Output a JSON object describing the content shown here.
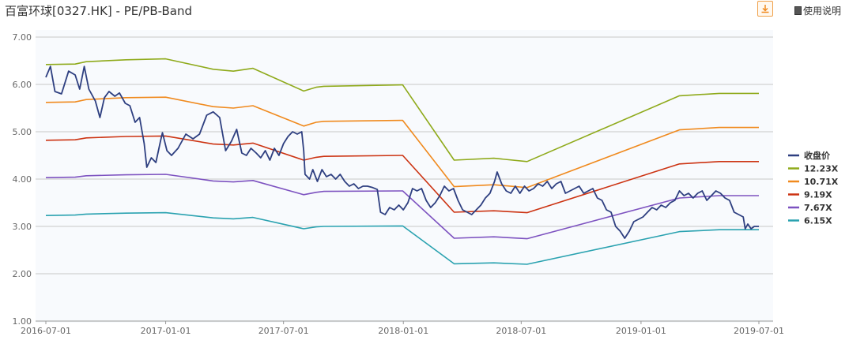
{
  "header": {
    "title": "百富环球[0327.HK] - PE/PB-Band",
    "help_label": "使用说明"
  },
  "chart_data": {
    "type": "line",
    "y_ticks": [
      "7.00",
      "6.00",
      "5.00",
      "4.00",
      "3.00",
      "2.00",
      "1.00"
    ],
    "ylim": [
      1,
      7
    ],
    "x_ticks": [
      {
        "label": "2016-07-01",
        "date": "2016-07-01"
      },
      {
        "label": "2017-01-01",
        "date": "2017-01-01"
      },
      {
        "label": "2017-07-01",
        "date": "2017-07-01"
      },
      {
        "label": "2018-01-01",
        "date": "2018-01-01"
      },
      {
        "label": "2018-07-01",
        "date": "2018-07-01"
      },
      {
        "label": "2019-01-01",
        "date": "2019-01-01"
      },
      {
        "label": "2019-07-01",
        "date": "2019-07-01"
      }
    ],
    "xlim": [
      "2016-07-01",
      "2019-07-01"
    ],
    "grid": true,
    "legend_position": "right",
    "series": [
      {
        "name": "收盘价",
        "color": "#2e3f80",
        "points": [
          [
            "2016-07-01",
            6.15
          ],
          [
            "2016-07-08",
            6.38
          ],
          [
            "2016-07-15",
            5.85
          ],
          [
            "2016-07-25",
            5.8
          ],
          [
            "2016-08-05",
            6.28
          ],
          [
            "2016-08-15",
            6.2
          ],
          [
            "2016-08-22",
            5.9
          ],
          [
            "2016-08-29",
            6.38
          ],
          [
            "2016-09-05",
            5.9
          ],
          [
            "2016-09-15",
            5.65
          ],
          [
            "2016-09-22",
            5.3
          ],
          [
            "2016-09-29",
            5.72
          ],
          [
            "2016-10-06",
            5.85
          ],
          [
            "2016-10-15",
            5.75
          ],
          [
            "2016-10-22",
            5.82
          ],
          [
            "2016-10-31",
            5.6
          ],
          [
            "2016-11-07",
            5.55
          ],
          [
            "2016-11-15",
            5.2
          ],
          [
            "2016-11-22",
            5.3
          ],
          [
            "2016-11-29",
            4.75
          ],
          [
            "2016-12-03",
            4.25
          ],
          [
            "2016-12-10",
            4.45
          ],
          [
            "2016-12-17",
            4.35
          ],
          [
            "2016-12-24",
            4.8
          ],
          [
            "2016-12-27",
            4.98
          ],
          [
            "2017-01-03",
            4.6
          ],
          [
            "2017-01-10",
            4.5
          ],
          [
            "2017-01-20",
            4.65
          ],
          [
            "2017-02-01",
            4.95
          ],
          [
            "2017-02-12",
            4.85
          ],
          [
            "2017-02-22",
            4.95
          ],
          [
            "2017-03-05",
            5.35
          ],
          [
            "2017-03-15",
            5.42
          ],
          [
            "2017-03-25",
            5.3
          ],
          [
            "2017-04-03",
            4.6
          ],
          [
            "2017-04-12",
            4.8
          ],
          [
            "2017-04-20",
            5.05
          ],
          [
            "2017-04-28",
            4.55
          ],
          [
            "2017-05-05",
            4.5
          ],
          [
            "2017-05-12",
            4.65
          ],
          [
            "2017-05-20",
            4.55
          ],
          [
            "2017-05-27",
            4.45
          ],
          [
            "2017-06-03",
            4.6
          ],
          [
            "2017-06-10",
            4.4
          ],
          [
            "2017-06-17",
            4.65
          ],
          [
            "2017-06-24",
            4.5
          ],
          [
            "2017-07-01",
            4.75
          ],
          [
            "2017-07-08",
            4.9
          ],
          [
            "2017-07-15",
            5.0
          ],
          [
            "2017-07-22",
            4.95
          ],
          [
            "2017-07-29",
            5.0
          ],
          [
            "2017-08-01",
            4.6
          ],
          [
            "2017-08-03",
            4.1
          ],
          [
            "2017-08-10",
            4.0
          ],
          [
            "2017-08-15",
            4.2
          ],
          [
            "2017-08-22",
            3.95
          ],
          [
            "2017-08-29",
            4.2
          ],
          [
            "2017-09-05",
            4.05
          ],
          [
            "2017-09-12",
            4.1
          ],
          [
            "2017-09-19",
            4.0
          ],
          [
            "2017-09-26",
            4.1
          ],
          [
            "2017-10-03",
            3.95
          ],
          [
            "2017-10-10",
            3.85
          ],
          [
            "2017-10-17",
            3.9
          ],
          [
            "2017-10-24",
            3.8
          ],
          [
            "2017-10-31",
            3.85
          ],
          [
            "2017-11-07",
            3.85
          ],
          [
            "2017-11-15",
            3.82
          ],
          [
            "2017-11-22",
            3.78
          ],
          [
            "2017-11-27",
            3.3
          ],
          [
            "2017-12-04",
            3.25
          ],
          [
            "2017-12-11",
            3.4
          ],
          [
            "2017-12-18",
            3.35
          ],
          [
            "2017-12-25",
            3.45
          ],
          [
            "2018-01-01",
            3.35
          ],
          [
            "2018-01-08",
            3.5
          ],
          [
            "2018-01-15",
            3.8
          ],
          [
            "2018-01-22",
            3.75
          ],
          [
            "2018-01-29",
            3.8
          ],
          [
            "2018-02-05",
            3.55
          ],
          [
            "2018-02-12",
            3.4
          ],
          [
            "2018-02-19",
            3.5
          ],
          [
            "2018-02-26",
            3.65
          ],
          [
            "2018-03-05",
            3.85
          ],
          [
            "2018-03-12",
            3.75
          ],
          [
            "2018-03-19",
            3.8
          ],
          [
            "2018-03-26",
            3.55
          ],
          [
            "2018-04-02",
            3.35
          ],
          [
            "2018-04-09",
            3.3
          ],
          [
            "2018-04-16",
            3.25
          ],
          [
            "2018-04-23",
            3.35
          ],
          [
            "2018-04-30",
            3.45
          ],
          [
            "2018-05-07",
            3.6
          ],
          [
            "2018-05-14",
            3.7
          ],
          [
            "2018-05-21",
            3.95
          ],
          [
            "2018-05-25",
            4.15
          ],
          [
            "2018-06-01",
            3.9
          ],
          [
            "2018-06-08",
            3.75
          ],
          [
            "2018-06-15",
            3.7
          ],
          [
            "2018-06-22",
            3.85
          ],
          [
            "2018-06-29",
            3.7
          ],
          [
            "2018-07-06",
            3.85
          ],
          [
            "2018-07-13",
            3.75
          ],
          [
            "2018-07-20",
            3.8
          ],
          [
            "2018-07-27",
            3.9
          ],
          [
            "2018-08-03",
            3.85
          ],
          [
            "2018-08-10",
            3.95
          ],
          [
            "2018-08-17",
            3.8
          ],
          [
            "2018-08-24",
            3.9
          ],
          [
            "2018-08-31",
            3.95
          ],
          [
            "2018-09-07",
            3.7
          ],
          [
            "2018-09-14",
            3.75
          ],
          [
            "2018-09-21",
            3.8
          ],
          [
            "2018-09-28",
            3.85
          ],
          [
            "2018-10-05",
            3.7
          ],
          [
            "2018-10-12",
            3.75
          ],
          [
            "2018-10-19",
            3.8
          ],
          [
            "2018-10-26",
            3.6
          ],
          [
            "2018-11-02",
            3.55
          ],
          [
            "2018-11-09",
            3.35
          ],
          [
            "2018-11-16",
            3.3
          ],
          [
            "2018-11-23",
            3.0
          ],
          [
            "2018-11-30",
            2.9
          ],
          [
            "2018-12-07",
            2.75
          ],
          [
            "2018-12-14",
            2.9
          ],
          [
            "2018-12-21",
            3.1
          ],
          [
            "2018-12-28",
            3.15
          ],
          [
            "2019-01-04",
            3.2
          ],
          [
            "2019-01-11",
            3.3
          ],
          [
            "2019-01-18",
            3.4
          ],
          [
            "2019-01-25",
            3.35
          ],
          [
            "2019-02-01",
            3.45
          ],
          [
            "2019-02-08",
            3.4
          ],
          [
            "2019-02-15",
            3.5
          ],
          [
            "2019-02-22",
            3.55
          ],
          [
            "2019-03-01",
            3.75
          ],
          [
            "2019-03-08",
            3.65
          ],
          [
            "2019-03-15",
            3.7
          ],
          [
            "2019-03-22",
            3.6
          ],
          [
            "2019-03-29",
            3.7
          ],
          [
            "2019-04-05",
            3.75
          ],
          [
            "2019-04-12",
            3.55
          ],
          [
            "2019-04-19",
            3.65
          ],
          [
            "2019-04-26",
            3.75
          ],
          [
            "2019-05-03",
            3.7
          ],
          [
            "2019-05-10",
            3.6
          ],
          [
            "2019-05-17",
            3.55
          ],
          [
            "2019-05-24",
            3.3
          ],
          [
            "2019-05-31",
            3.25
          ],
          [
            "2019-06-07",
            3.2
          ],
          [
            "2019-06-10",
            2.95
          ],
          [
            "2019-06-14",
            3.05
          ],
          [
            "2019-06-19",
            2.95
          ],
          [
            "2019-06-24",
            3.0
          ],
          [
            "2019-07-01",
            3.0
          ]
        ]
      },
      {
        "name": "12.23X",
        "color": "#8faa1b",
        "points": [
          [
            "2016-07-01",
            6.42
          ],
          [
            "2016-08-15",
            6.43
          ],
          [
            "2016-09-01",
            6.48
          ],
          [
            "2016-11-01",
            6.52
          ],
          [
            "2017-01-01",
            6.54
          ],
          [
            "2017-03-15",
            6.32
          ],
          [
            "2017-04-15",
            6.28
          ],
          [
            "2017-05-15",
            6.34
          ],
          [
            "2017-08-01",
            5.86
          ],
          [
            "2017-08-20",
            5.94
          ],
          [
            "2017-09-01",
            5.96
          ],
          [
            "2017-12-31",
            5.99
          ],
          [
            "2018-03-20",
            4.4
          ],
          [
            "2018-05-20",
            4.44
          ],
          [
            "2018-07-10",
            4.37
          ],
          [
            "2019-03-01",
            5.76
          ],
          [
            "2019-05-01",
            5.81
          ],
          [
            "2019-07-01",
            5.81
          ]
        ]
      },
      {
        "name": "10.71X",
        "color": "#f08a1e",
        "points": [
          [
            "2016-07-01",
            5.62
          ],
          [
            "2016-08-15",
            5.63
          ],
          [
            "2016-09-01",
            5.68
          ],
          [
            "2016-11-01",
            5.72
          ],
          [
            "2017-01-01",
            5.73
          ],
          [
            "2017-03-15",
            5.53
          ],
          [
            "2017-04-15",
            5.5
          ],
          [
            "2017-05-15",
            5.55
          ],
          [
            "2017-08-01",
            5.12
          ],
          [
            "2017-08-20",
            5.2
          ],
          [
            "2017-09-01",
            5.22
          ],
          [
            "2017-12-31",
            5.24
          ],
          [
            "2018-03-20",
            3.84
          ],
          [
            "2018-05-20",
            3.88
          ],
          [
            "2018-07-10",
            3.82
          ],
          [
            "2019-03-01",
            5.04
          ],
          [
            "2019-05-01",
            5.09
          ],
          [
            "2019-07-01",
            5.09
          ]
        ]
      },
      {
        "name": "9.19X",
        "color": "#cc3312",
        "points": [
          [
            "2016-07-01",
            4.82
          ],
          [
            "2016-08-15",
            4.83
          ],
          [
            "2016-09-01",
            4.87
          ],
          [
            "2016-11-01",
            4.9
          ],
          [
            "2017-01-01",
            4.91
          ],
          [
            "2017-03-15",
            4.74
          ],
          [
            "2017-04-15",
            4.72
          ],
          [
            "2017-05-15",
            4.76
          ],
          [
            "2017-08-01",
            4.4
          ],
          [
            "2017-08-20",
            4.46
          ],
          [
            "2017-09-01",
            4.48
          ],
          [
            "2017-12-31",
            4.5
          ],
          [
            "2018-03-20",
            3.3
          ],
          [
            "2018-05-20",
            3.33
          ],
          [
            "2018-07-10",
            3.29
          ],
          [
            "2019-03-01",
            4.32
          ],
          [
            "2019-05-01",
            4.37
          ],
          [
            "2019-07-01",
            4.37
          ]
        ]
      },
      {
        "name": "7.67X",
        "color": "#7d52c0",
        "points": [
          [
            "2016-07-01",
            4.03
          ],
          [
            "2016-08-15",
            4.04
          ],
          [
            "2016-09-01",
            4.07
          ],
          [
            "2016-11-01",
            4.09
          ],
          [
            "2017-01-01",
            4.1
          ],
          [
            "2017-03-15",
            3.96
          ],
          [
            "2017-04-15",
            3.94
          ],
          [
            "2017-05-15",
            3.97
          ],
          [
            "2017-08-01",
            3.67
          ],
          [
            "2017-08-20",
            3.72
          ],
          [
            "2017-09-01",
            3.74
          ],
          [
            "2017-12-31",
            3.75
          ],
          [
            "2018-03-20",
            2.75
          ],
          [
            "2018-05-20",
            2.78
          ],
          [
            "2018-07-10",
            2.74
          ],
          [
            "2019-03-01",
            3.6
          ],
          [
            "2019-05-01",
            3.65
          ],
          [
            "2019-07-01",
            3.65
          ]
        ]
      },
      {
        "name": "6.15X",
        "color": "#2aa2b0",
        "points": [
          [
            "2016-07-01",
            3.23
          ],
          [
            "2016-08-15",
            3.24
          ],
          [
            "2016-09-01",
            3.26
          ],
          [
            "2016-11-01",
            3.28
          ],
          [
            "2017-01-01",
            3.29
          ],
          [
            "2017-03-15",
            3.18
          ],
          [
            "2017-04-15",
            3.16
          ],
          [
            "2017-05-15",
            3.19
          ],
          [
            "2017-08-01",
            2.95
          ],
          [
            "2017-08-20",
            2.99
          ],
          [
            "2017-09-01",
            3.0
          ],
          [
            "2017-12-31",
            3.01
          ],
          [
            "2018-03-20",
            2.21
          ],
          [
            "2018-05-20",
            2.23
          ],
          [
            "2018-07-10",
            2.2
          ],
          [
            "2019-03-01",
            2.89
          ],
          [
            "2019-05-01",
            2.93
          ],
          [
            "2019-07-01",
            2.93
          ]
        ]
      }
    ]
  }
}
